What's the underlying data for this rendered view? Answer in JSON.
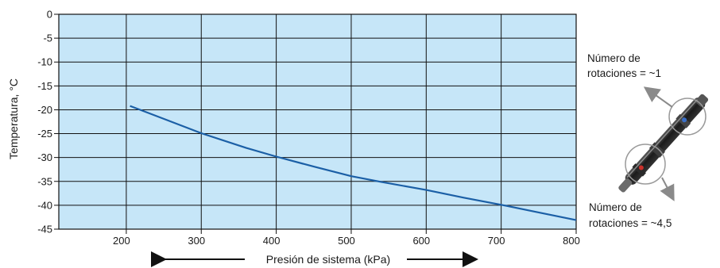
{
  "chart_data": {
    "type": "line",
    "xlabel": "Presión de sistema (kPa)",
    "ylabel": "Temperatura, °C",
    "xlim": [
      110,
      800
    ],
    "ylim": [
      -45,
      0
    ],
    "x_ticks": [
      "200",
      "300",
      "400",
      "500",
      "600",
      "700",
      "800"
    ],
    "y_ticks": [
      "0",
      "-5",
      "-10",
      "-15",
      "-20",
      "-25",
      "-30",
      "-35",
      "-40",
      "-45"
    ],
    "grid": true,
    "background_color": "#c6e6f8",
    "line_color": "#1b5fa6",
    "series": [
      {
        "x": [
          205,
          250,
          300,
          360,
          400,
          450,
          500,
          540,
          600,
          650,
          700,
          750,
          800
        ],
        "y": [
          -19.2,
          -21.9,
          -24.9,
          -28.0,
          -29.8,
          -31.9,
          -33.9,
          -35.1,
          -36.8,
          -38.4,
          -39.9,
          -41.5,
          -43.1
        ]
      }
    ]
  },
  "annotations": {
    "top_line1": "Número de",
    "top_line2": "rotaciones = ~1",
    "bottom_line1": "Número de",
    "bottom_line2": "rotaciones = ~4,5"
  },
  "icons": {
    "component": "valve-core-component-icon"
  }
}
